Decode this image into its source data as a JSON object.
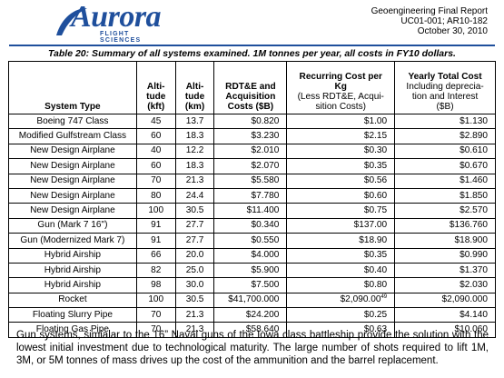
{
  "logo": {
    "name": "Aurora",
    "tagline": "FLIGHT SCIENCES"
  },
  "report": {
    "title": "Geoengineering Final Report",
    "number": "UC01-001; AR10-182",
    "date": "October 30, 2010"
  },
  "caption": "Table 20: Summary of all systems examined.  1M tonnes per year, all costs in FY10 dollars.",
  "table": {
    "headers": {
      "type": "System Type",
      "alt_kft": [
        "Alti-",
        "tude",
        "(kft)"
      ],
      "alt_km": [
        "Alti-",
        "tude",
        "(km)"
      ],
      "rdte": [
        "RDT&E and",
        "Acquisition",
        "Costs ($B)"
      ],
      "recurring": [
        "Recurring Cost per",
        "Kg",
        "(Less RDT&E, Acqui-",
        "sition Costs)"
      ],
      "yearly": [
        "Yearly Total Cost",
        "Including deprecia-",
        "tion and Interest",
        "($B)"
      ]
    },
    "rows": [
      {
        "type": "Boeing 747 Class",
        "kft": "45",
        "km": "13.7",
        "rdte": "$0.820",
        "recurring": "$1.00",
        "yearly": "$1.130"
      },
      {
        "type": "Modified Gulfstream Class",
        "kft": "60",
        "km": "18.3",
        "rdte": "$3.230",
        "recurring": "$2.15",
        "yearly": "$2.890"
      },
      {
        "type": "New Design Airplane",
        "kft": "40",
        "km": "12.2",
        "rdte": "$2.010",
        "recurring": "$0.30",
        "yearly": "$0.610"
      },
      {
        "type": "New Design Airplane",
        "kft": "60",
        "km": "18.3",
        "rdte": "$2.070",
        "recurring": "$0.35",
        "yearly": "$0.670"
      },
      {
        "type": "New Design Airplane",
        "kft": "70",
        "km": "21.3",
        "rdte": "$5.580",
        "recurring": "$0.56",
        "yearly": "$1.460"
      },
      {
        "type": "New Design Airplane",
        "kft": "80",
        "km": "24.4",
        "rdte": "$7.780",
        "recurring": "$0.60",
        "yearly": "$1.850"
      },
      {
        "type": "New Design Airplane",
        "kft": "100",
        "km": "30.5",
        "rdte": "$11.400",
        "recurring": "$0.75",
        "yearly": "$2.570"
      },
      {
        "type": "Gun (Mark 7 16\")",
        "kft": "91",
        "km": "27.7",
        "rdte": "$0.340",
        "recurring": "$137.00",
        "yearly": "$136.760"
      },
      {
        "type": "Gun (Modernized Mark 7)",
        "kft": "91",
        "km": "27.7",
        "rdte": "$0.550",
        "recurring": "$18.90",
        "yearly": "$18.900"
      },
      {
        "type": "Hybrid Airship",
        "kft": "66",
        "km": "20.0",
        "rdte": "$4.000",
        "recurring": "$0.35",
        "yearly": "$0.990"
      },
      {
        "type": "Hybrid Airship",
        "kft": "82",
        "km": "25.0",
        "rdte": "$5.900",
        "recurring": "$0.40",
        "yearly": "$1.370"
      },
      {
        "type": "Hybrid Airship",
        "kft": "98",
        "km": "30.0",
        "rdte": "$7.500",
        "recurring": "$0.80",
        "yearly": "$2.030"
      },
      {
        "type": "Rocket",
        "kft": "100",
        "km": "30.5",
        "rdte": "$41,700.000",
        "recurring": "$2,090.00",
        "footnote": "49",
        "yearly": "$2,090.000"
      },
      {
        "type": "Floating Slurry Pipe",
        "kft": "70",
        "km": "21.3",
        "rdte": "$24.200",
        "recurring": "$0.25",
        "yearly": "$4.140"
      },
      {
        "type": "Floating Gas Pipe",
        "kft": "70",
        "km": "21.3",
        "rdte": "$58.640",
        "recurring": "$0.63",
        "yearly": "$10.060"
      }
    ]
  },
  "paragraph": "Gun systems, simialar to the 16” Naval guns of the Iowa class battleship provide the solution with the lowest initial investment due to technological maturity.  The large number of shots required to lift 1M, 3M, or 5M tonnes of mass drives up the cost of the ammunition and the barrel replacement."
}
